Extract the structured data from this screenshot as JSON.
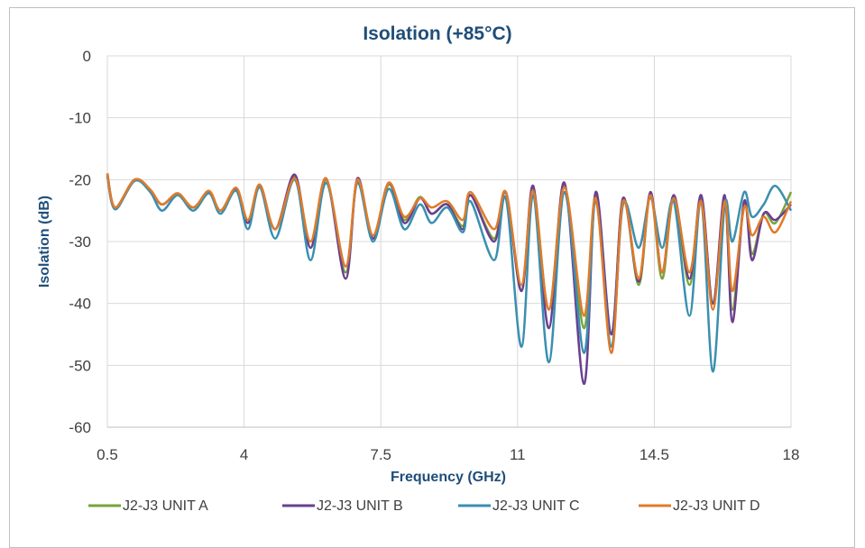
{
  "chart_data": {
    "type": "line",
    "title": "Isolation (+85°C)",
    "xlabel": "Frequency (GHz)",
    "ylabel": "Isolation (dB)",
    "xlim": [
      0.5,
      18
    ],
    "ylim": [
      -60,
      0
    ],
    "x_ticks": [
      "0.5",
      "4",
      "7.5",
      "11",
      "14.5",
      "18"
    ],
    "y_ticks": [
      "0",
      "-10",
      "-20",
      "-30",
      "-40",
      "-50",
      "-60"
    ],
    "grid": true,
    "legend_position": "bottom",
    "series": [
      {
        "name": "J2-J3 UNIT A",
        "color": "#77a33c",
        "points": [
          [
            0.5,
            -19
          ],
          [
            0.7,
            -24.5
          ],
          [
            1.2,
            -20
          ],
          [
            1.6,
            -21.8
          ],
          [
            1.9,
            -24
          ],
          [
            2.3,
            -22.3
          ],
          [
            2.7,
            -24.5
          ],
          [
            3.1,
            -22
          ],
          [
            3.4,
            -25
          ],
          [
            3.8,
            -21.5
          ],
          [
            4.1,
            -27
          ],
          [
            4.4,
            -21
          ],
          [
            4.8,
            -28
          ],
          [
            5.3,
            -19.5
          ],
          [
            5.7,
            -31
          ],
          [
            6.1,
            -20
          ],
          [
            6.6,
            -35
          ],
          [
            6.9,
            -20
          ],
          [
            7.3,
            -29.5
          ],
          [
            7.7,
            -20.8
          ],
          [
            8.1,
            -26.5
          ],
          [
            8.5,
            -22.8
          ],
          [
            8.8,
            -25.5
          ],
          [
            9.2,
            -24
          ],
          [
            9.6,
            -27.5
          ],
          [
            9.8,
            -22.5
          ],
          [
            10.4,
            -29.5
          ],
          [
            10.7,
            -22
          ],
          [
            11.1,
            -38
          ],
          [
            11.4,
            -21.5
          ],
          [
            11.8,
            -41
          ],
          [
            12.2,
            -21
          ],
          [
            12.7,
            -44
          ],
          [
            13.0,
            -22.5
          ],
          [
            13.4,
            -45
          ],
          [
            13.7,
            -23
          ],
          [
            14.1,
            -37
          ],
          [
            14.4,
            -22.5
          ],
          [
            14.7,
            -36
          ],
          [
            15.0,
            -23
          ],
          [
            15.4,
            -37
          ],
          [
            15.7,
            -23
          ],
          [
            16.0,
            -40
          ],
          [
            16.3,
            -23.5
          ],
          [
            16.5,
            -41
          ],
          [
            16.8,
            -23.5
          ],
          [
            17.0,
            -32
          ],
          [
            17.3,
            -25.5
          ],
          [
            17.6,
            -27
          ],
          [
            18.0,
            -22
          ]
        ]
      },
      {
        "name": "J2-J3 UNIT B",
        "color": "#6a3f8f",
        "points": [
          [
            0.5,
            -19
          ],
          [
            0.7,
            -24.5
          ],
          [
            1.2,
            -20
          ],
          [
            1.6,
            -21.8
          ],
          [
            1.9,
            -24
          ],
          [
            2.3,
            -22.3
          ],
          [
            2.7,
            -24.5
          ],
          [
            3.1,
            -22
          ],
          [
            3.4,
            -25
          ],
          [
            3.8,
            -21.5
          ],
          [
            4.1,
            -27
          ],
          [
            4.4,
            -20.8
          ],
          [
            4.8,
            -28
          ],
          [
            5.3,
            -19.2
          ],
          [
            5.7,
            -31
          ],
          [
            6.1,
            -19.8
          ],
          [
            6.6,
            -36
          ],
          [
            6.9,
            -19.8
          ],
          [
            7.3,
            -29.5
          ],
          [
            7.7,
            -20.5
          ],
          [
            8.1,
            -27
          ],
          [
            8.5,
            -23
          ],
          [
            8.8,
            -25.5
          ],
          [
            9.2,
            -24
          ],
          [
            9.6,
            -28
          ],
          [
            9.8,
            -22.5
          ],
          [
            10.4,
            -30
          ],
          [
            10.7,
            -22
          ],
          [
            11.1,
            -38
          ],
          [
            11.4,
            -21
          ],
          [
            11.8,
            -44
          ],
          [
            12.2,
            -20.5
          ],
          [
            12.7,
            -53
          ],
          [
            13.0,
            -22
          ],
          [
            13.4,
            -45
          ],
          [
            13.7,
            -23
          ],
          [
            14.1,
            -36.5
          ],
          [
            14.4,
            -22
          ],
          [
            14.7,
            -35
          ],
          [
            15.0,
            -22.5
          ],
          [
            15.4,
            -36
          ],
          [
            15.7,
            -22.5
          ],
          [
            16.0,
            -40
          ],
          [
            16.3,
            -22.5
          ],
          [
            16.5,
            -43
          ],
          [
            16.8,
            -23.5
          ],
          [
            17.0,
            -33
          ],
          [
            17.3,
            -25.5
          ],
          [
            17.6,
            -26.5
          ],
          [
            18.0,
            -24
          ]
        ]
      },
      {
        "name": "J2-J3 UNIT C",
        "color": "#3a8fb0",
        "points": [
          [
            0.5,
            -19.5
          ],
          [
            0.7,
            -24.8
          ],
          [
            1.2,
            -20.2
          ],
          [
            1.6,
            -22
          ],
          [
            1.9,
            -25
          ],
          [
            2.3,
            -22.5
          ],
          [
            2.7,
            -25
          ],
          [
            3.1,
            -22.2
          ],
          [
            3.4,
            -25.5
          ],
          [
            3.8,
            -21.8
          ],
          [
            4.1,
            -28
          ],
          [
            4.4,
            -21.2
          ],
          [
            4.8,
            -29.5
          ],
          [
            5.3,
            -20
          ],
          [
            5.7,
            -33
          ],
          [
            6.1,
            -20.5
          ],
          [
            6.6,
            -34
          ],
          [
            6.9,
            -20.5
          ],
          [
            7.3,
            -30
          ],
          [
            7.7,
            -21.5
          ],
          [
            8.1,
            -28
          ],
          [
            8.5,
            -24
          ],
          [
            8.8,
            -27
          ],
          [
            9.2,
            -24.5
          ],
          [
            9.6,
            -28.5
          ],
          [
            9.8,
            -23.5
          ],
          [
            10.4,
            -33
          ],
          [
            10.7,
            -23
          ],
          [
            11.1,
            -47
          ],
          [
            11.4,
            -22.5
          ],
          [
            11.8,
            -49.5
          ],
          [
            12.2,
            -22
          ],
          [
            12.7,
            -48
          ],
          [
            13.0,
            -23.5
          ],
          [
            13.4,
            -47
          ],
          [
            13.7,
            -24
          ],
          [
            14.1,
            -31
          ],
          [
            14.4,
            -23
          ],
          [
            14.7,
            -31
          ],
          [
            15.0,
            -23.5
          ],
          [
            15.4,
            -42
          ],
          [
            15.7,
            -23.5
          ],
          [
            16.0,
            -51
          ],
          [
            16.3,
            -24
          ],
          [
            16.5,
            -30
          ],
          [
            16.8,
            -22
          ],
          [
            17.0,
            -26
          ],
          [
            17.3,
            -24
          ],
          [
            17.6,
            -21
          ],
          [
            18.0,
            -25
          ]
        ]
      },
      {
        "name": "J2-J3 UNIT D",
        "color": "#e07b2a",
        "points": [
          [
            0.5,
            -19
          ],
          [
            0.7,
            -24.5
          ],
          [
            1.2,
            -20
          ],
          [
            1.6,
            -21.6
          ],
          [
            1.9,
            -24
          ],
          [
            2.3,
            -22.2
          ],
          [
            2.7,
            -24.5
          ],
          [
            3.1,
            -21.8
          ],
          [
            3.4,
            -25
          ],
          [
            3.8,
            -21.3
          ],
          [
            4.1,
            -26.5
          ],
          [
            4.4,
            -20.8
          ],
          [
            4.8,
            -28
          ],
          [
            5.3,
            -19.8
          ],
          [
            5.7,
            -30
          ],
          [
            6.1,
            -19.8
          ],
          [
            6.6,
            -34
          ],
          [
            6.9,
            -20
          ],
          [
            7.3,
            -29
          ],
          [
            7.7,
            -20.5
          ],
          [
            8.1,
            -26
          ],
          [
            8.5,
            -23
          ],
          [
            8.8,
            -24.5
          ],
          [
            9.2,
            -23.5
          ],
          [
            9.6,
            -26.5
          ],
          [
            9.8,
            -22
          ],
          [
            10.4,
            -28
          ],
          [
            10.7,
            -22
          ],
          [
            11.1,
            -37
          ],
          [
            11.4,
            -21.8
          ],
          [
            11.8,
            -41
          ],
          [
            12.2,
            -21.2
          ],
          [
            12.7,
            -42
          ],
          [
            13.0,
            -23
          ],
          [
            13.4,
            -48
          ],
          [
            13.7,
            -23.5
          ],
          [
            14.1,
            -36
          ],
          [
            14.4,
            -22.5
          ],
          [
            14.7,
            -35
          ],
          [
            15.0,
            -23
          ],
          [
            15.4,
            -35
          ],
          [
            15.7,
            -23.5
          ],
          [
            16.0,
            -41
          ],
          [
            16.3,
            -23.5
          ],
          [
            16.5,
            -38
          ],
          [
            16.8,
            -24.5
          ],
          [
            17.0,
            -29
          ],
          [
            17.3,
            -26
          ],
          [
            17.6,
            -28.5
          ],
          [
            18.0,
            -23.5
          ]
        ]
      }
    ]
  }
}
